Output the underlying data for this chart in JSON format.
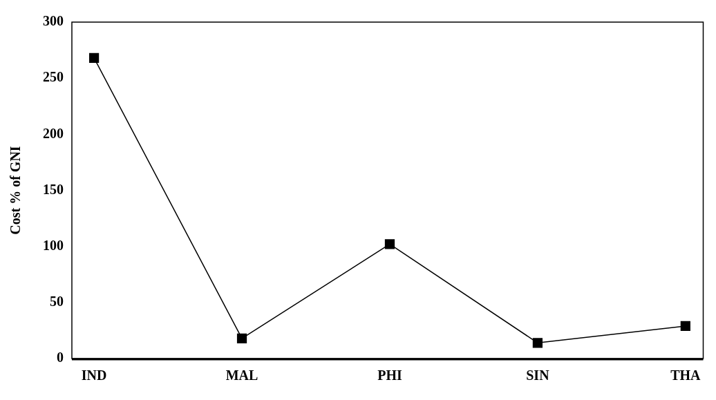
{
  "chart_data": {
    "type": "line",
    "ylabel": "Cost % of GNI",
    "categories": [
      "IND",
      "MAL",
      "PHI",
      "SIN",
      "THA"
    ],
    "series": [
      {
        "color": "#000000",
        "values": [
          268,
          18,
          102,
          14,
          29
        ]
      }
    ],
    "ylim": [
      0,
      300
    ],
    "yticks": [
      0,
      50,
      100,
      150,
      200,
      250,
      300
    ],
    "grid": false,
    "legend": false,
    "marker": "square",
    "line_style": "solid"
  }
}
